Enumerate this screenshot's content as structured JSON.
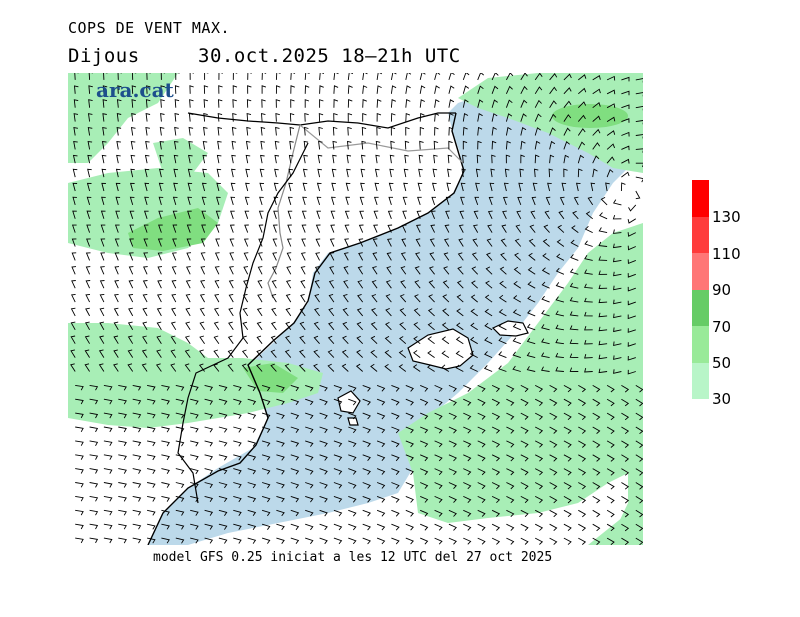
{
  "header": {
    "title": "COPS DE VENT MAX.",
    "day": "Dijous",
    "date": "30.oct.2025 18–21h UTC"
  },
  "logo": {
    "text": "ara.cat"
  },
  "footer": {
    "text": "model GFS 0.25 iniciat a les 12 UTC del 27 oct 2025"
  },
  "legend": {
    "labels": [
      "130",
      "110",
      "90",
      "70",
      "50",
      "30"
    ],
    "colors": [
      "#ff0000",
      "#ff3b3b",
      "#ff7676",
      "#66cc66",
      "#99ea99",
      "#b8f5c8"
    ]
  },
  "map_colors": {
    "land": "#ffffff",
    "sea_low": "#bcd9ea",
    "wind_30_50": "#a8eeb6",
    "wind_50_70": "#80de80",
    "coast": "#000000",
    "border": "#999999"
  }
}
